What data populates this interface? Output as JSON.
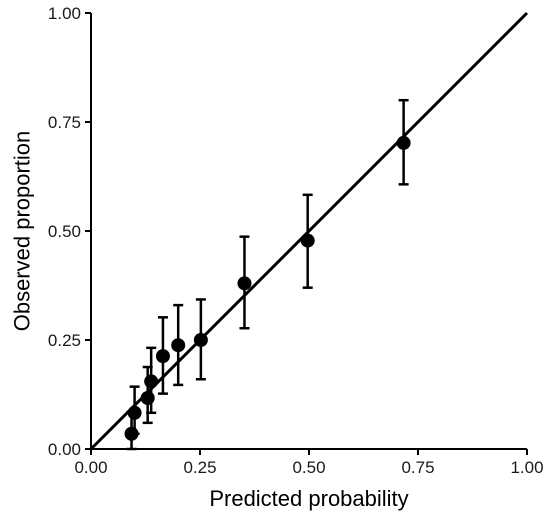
{
  "chart_data": {
    "type": "scatter",
    "title": "",
    "xlabel": "Predicted probability",
    "ylabel": "Observed proportion",
    "xlim": [
      0,
      1
    ],
    "ylim": [
      0,
      1
    ],
    "x_ticks": [
      0,
      0.25,
      0.5,
      0.75,
      1
    ],
    "y_ticks": [
      0,
      0.25,
      0.5,
      0.75,
      1
    ],
    "x_tick_labels": [
      "0.00",
      "0.25",
      "0.50",
      "0.75",
      "1.00"
    ],
    "y_tick_labels": [
      "0.00",
      "0.25",
      "0.50",
      "0.75",
      "1.00"
    ],
    "reference_line": {
      "from": [
        0,
        0
      ],
      "to": [
        1,
        1
      ]
    },
    "grid": false,
    "points": [
      {
        "x": 0.093,
        "y": 0.035,
        "lower": 0.0,
        "upper": 0.085
      },
      {
        "x": 0.1,
        "y": 0.083,
        "lower": 0.035,
        "upper": 0.143
      },
      {
        "x": 0.13,
        "y": 0.117,
        "lower": 0.06,
        "upper": 0.188
      },
      {
        "x": 0.138,
        "y": 0.155,
        "lower": 0.083,
        "upper": 0.232
      },
      {
        "x": 0.165,
        "y": 0.213,
        "lower": 0.127,
        "upper": 0.302
      },
      {
        "x": 0.2,
        "y": 0.238,
        "lower": 0.147,
        "upper": 0.33
      },
      {
        "x": 0.252,
        "y": 0.25,
        "lower": 0.16,
        "upper": 0.343
      },
      {
        "x": 0.352,
        "y": 0.38,
        "lower": 0.277,
        "upper": 0.487
      },
      {
        "x": 0.497,
        "y": 0.478,
        "lower": 0.37,
        "upper": 0.583
      },
      {
        "x": 0.717,
        "y": 0.702,
        "lower": 0.607,
        "upper": 0.8
      }
    ],
    "colors": {
      "marks": "#000000",
      "text": "#1a1a1a"
    }
  }
}
